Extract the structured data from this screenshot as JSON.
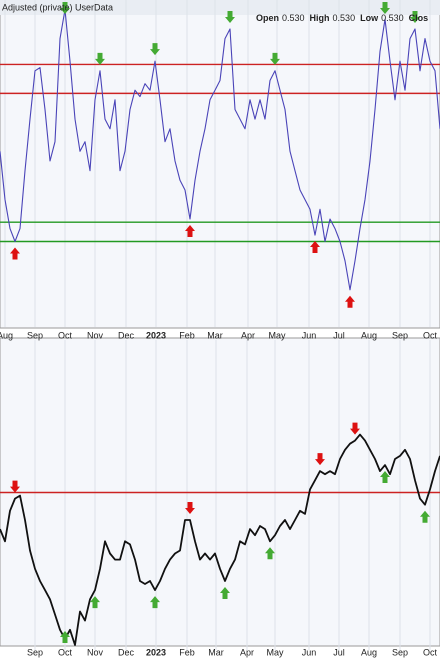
{
  "header": {
    "title": "Adjusted (private) UserData",
    "ohlc": [
      {
        "label": "Open",
        "value": "0.530"
      },
      {
        "label": "High",
        "value": "0.530"
      },
      {
        "label": "Low",
        "value": "0.530"
      },
      {
        "label": "Clos"
      }
    ]
  },
  "chart_data": [
    {
      "type": "line",
      "xlim": [
        0,
        88
      ],
      "ylim": [
        0,
        100
      ],
      "xticks": [
        {
          "value": 1,
          "label": "Aug"
        },
        {
          "value": 7,
          "label": "Sep"
        },
        {
          "value": 13,
          "label": "Oct"
        },
        {
          "value": 19,
          "label": "Nov"
        },
        {
          "value": 25.2,
          "label": "Dec"
        },
        {
          "value": 31.2,
          "label": "2023"
        },
        {
          "value": 37.4,
          "label": "Feb"
        },
        {
          "value": 43,
          "label": "Mar"
        },
        {
          "value": 49.6,
          "label": "Apr"
        },
        {
          "value": 55.4,
          "label": "May"
        },
        {
          "value": 61.8,
          "label": "Jun"
        },
        {
          "value": 67.8,
          "label": "Jul"
        },
        {
          "value": 73.8,
          "label": "Aug"
        },
        {
          "value": 80,
          "label": "Sep"
        },
        {
          "value": 86,
          "label": "Oct"
        }
      ],
      "ref_lines": [
        {
          "value": 80,
          "color": "#cc2222"
        },
        {
          "value": 71,
          "color": "#cc2222"
        },
        {
          "value": 31,
          "color": "#229922"
        },
        {
          "value": 25,
          "color": "#229922"
        }
      ],
      "series": [
        {
          "color": "#4a44b8",
          "values": [
            53,
            38,
            29,
            25,
            29,
            47,
            63,
            78,
            79,
            66,
            50,
            56,
            88,
            97,
            81,
            63,
            53,
            56,
            47,
            69,
            78,
            63,
            60,
            69,
            47,
            53,
            66,
            72,
            70,
            74,
            72,
            81,
            69,
            56,
            60,
            50,
            44,
            41,
            32,
            44,
            53,
            60,
            69,
            72,
            75,
            88,
            91,
            66,
            63,
            60,
            69,
            63,
            69,
            63,
            75,
            78,
            72,
            66,
            53,
            47,
            41,
            38,
            35,
            27,
            35,
            25,
            32,
            29,
            25,
            19,
            10,
            19,
            29,
            38,
            50,
            66,
            84,
            94,
            81,
            69,
            81,
            72,
            88,
            91,
            78,
            88,
            81,
            78,
            60
          ]
        }
      ],
      "sell_signals": [
        13,
        20,
        31,
        46,
        55,
        77,
        83
      ],
      "buy_signals": [
        3,
        38,
        63,
        70
      ]
    },
    {
      "type": "line",
      "xlim": [
        0,
        88
      ],
      "ylim": [
        0,
        100
      ],
      "xticks": [
        {
          "value": 7,
          "label": "Sep"
        },
        {
          "value": 13,
          "label": "Oct"
        },
        {
          "value": 19,
          "label": "Nov"
        },
        {
          "value": 25.2,
          "label": "Dec"
        },
        {
          "value": 31.2,
          "label": "2023"
        },
        {
          "value": 37.4,
          "label": "Feb"
        },
        {
          "value": 43.2,
          "label": "Mar"
        },
        {
          "value": 49.4,
          "label": "Apr"
        },
        {
          "value": 55,
          "label": "May"
        },
        {
          "value": 61.8,
          "label": "Jun"
        },
        {
          "value": 67.8,
          "label": "Jul"
        },
        {
          "value": 73.8,
          "label": "Aug"
        },
        {
          "value": 80,
          "label": "Sep"
        },
        {
          "value": 86,
          "label": "Oct"
        }
      ],
      "ref_lines": [
        {
          "value": 50,
          "color": "#cc2222"
        }
      ],
      "series": [
        {
          "color": "#111111",
          "values": [
            38,
            34,
            44,
            48,
            49,
            41,
            31,
            25,
            21,
            18,
            15,
            10,
            5,
            2,
            5,
            0,
            11,
            8,
            15,
            18,
            25,
            34,
            30,
            28,
            28,
            34,
            33,
            28,
            21,
            20,
            21,
            18,
            21,
            25,
            28,
            30,
            31,
            41,
            41,
            34,
            28,
            30,
            28,
            30,
            25,
            21,
            25,
            28,
            34,
            33,
            38,
            36,
            39,
            38,
            34,
            36,
            39,
            41,
            38,
            41,
            44,
            43,
            51,
            54,
            57,
            56,
            57,
            56,
            61,
            64,
            66,
            67,
            69,
            67,
            64,
            61,
            57,
            59,
            56,
            61,
            62,
            64,
            61,
            54,
            48,
            46,
            51,
            57,
            62
          ]
        }
      ],
      "sell_signals": [
        3,
        38,
        64,
        71
      ],
      "buy_signals": [
        13,
        19,
        31,
        45,
        54,
        77,
        85
      ]
    }
  ]
}
